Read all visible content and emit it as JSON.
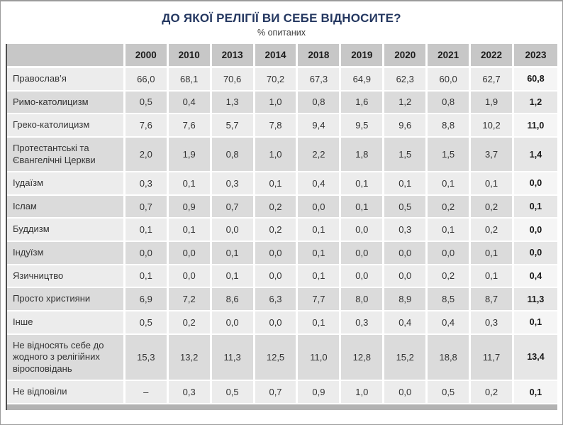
{
  "title": "ДО ЯКОЇ РЕЛІГІЇ ВИ СЕБЕ ВІДНОСИТЕ?",
  "subtitle": "% опитаних",
  "colors": {
    "title_navy": "#243760",
    "header_bg": "#c7c7c7",
    "row_light": "#ececec",
    "row_dark": "#dbdbdb",
    "footer_bar": "#b2b2b2"
  },
  "table": {
    "year_headers": [
      "2000",
      "2010",
      "2013",
      "2014",
      "2018",
      "2019",
      "2020",
      "2021",
      "2022",
      "2023"
    ],
    "rows": [
      {
        "label": "Православ’я",
        "values": [
          "66,0",
          "68,1",
          "70,6",
          "70,2",
          "67,3",
          "64,9",
          "62,3",
          "60,0",
          "62,7",
          "60,8"
        ]
      },
      {
        "label": "Римо-католицизм",
        "values": [
          "0,5",
          "0,4",
          "1,3",
          "1,0",
          "0,8",
          "1,6",
          "1,2",
          "0,8",
          "1,9",
          "1,2"
        ]
      },
      {
        "label": "Греко-католицизм",
        "values": [
          "7,6",
          "7,6",
          "5,7",
          "7,8",
          "9,4",
          "9,5",
          "9,6",
          "8,8",
          "10,2",
          "11,0"
        ]
      },
      {
        "label": "Протестантські та Євангелічні Церкви",
        "values": [
          "2,0",
          "1,9",
          "0,8",
          "1,0",
          "2,2",
          "1,8",
          "1,5",
          "1,5",
          "3,7",
          "1,4"
        ]
      },
      {
        "label": "Іудаїзм",
        "values": [
          "0,3",
          "0,1",
          "0,3",
          "0,1",
          "0,4",
          "0,1",
          "0,1",
          "0,1",
          "0,1",
          "0,0"
        ]
      },
      {
        "label": "Іслам",
        "values": [
          "0,7",
          "0,9",
          "0,7",
          "0,2",
          "0,0",
          "0,1",
          "0,5",
          "0,2",
          "0,2",
          "0,1"
        ]
      },
      {
        "label": "Буддизм",
        "values": [
          "0,1",
          "0,1",
          "0,0",
          "0,2",
          "0,1",
          "0,0",
          "0,3",
          "0,1",
          "0,2",
          "0,0"
        ]
      },
      {
        "label": "Індуїзм",
        "values": [
          "0,0",
          "0,0",
          "0,1",
          "0,0",
          "0,1",
          "0,0",
          "0,0",
          "0,0",
          "0,1",
          "0,0"
        ]
      },
      {
        "label": "Язичництво",
        "values": [
          "0,1",
          "0,0",
          "0,1",
          "0,0",
          "0,1",
          "0,0",
          "0,0",
          "0,2",
          "0,1",
          "0,4"
        ]
      },
      {
        "label": "Просто християни",
        "values": [
          "6,9",
          "7,2",
          "8,6",
          "6,3",
          "7,7",
          "8,0",
          "8,9",
          "8,5",
          "8,7",
          "11,3"
        ]
      },
      {
        "label": "Інше",
        "values": [
          "0,5",
          "0,2",
          "0,0",
          "0,0",
          "0,1",
          "0,3",
          "0,4",
          "0,4",
          "0,3",
          "0,1"
        ]
      },
      {
        "label": "Не відносять себе до жодного з релігійних віросповідань",
        "values": [
          "15,3",
          "13,2",
          "11,3",
          "12,5",
          "11,0",
          "12,8",
          "15,2",
          "18,8",
          "11,7",
          "13,4"
        ]
      },
      {
        "label": "Не відповіли",
        "values": [
          "–",
          "0,3",
          "0,5",
          "0,7",
          "0,9",
          "1,0",
          "0,0",
          "0,5",
          "0,2",
          "0,1"
        ]
      }
    ]
  },
  "chart_data": {
    "type": "table",
    "title": "ДО ЯКОЇ РЕЛІГІЇ ВИ СЕБЕ ВІДНОСИТЕ?",
    "subtitle": "% опитаних",
    "categories": [
      "2000",
      "2010",
      "2013",
      "2014",
      "2018",
      "2019",
      "2020",
      "2021",
      "2022",
      "2023"
    ],
    "series": [
      {
        "name": "Православ’я",
        "values": [
          66.0,
          68.1,
          70.6,
          70.2,
          67.3,
          64.9,
          62.3,
          60.0,
          62.7,
          60.8
        ]
      },
      {
        "name": "Римо-католицизм",
        "values": [
          0.5,
          0.4,
          1.3,
          1.0,
          0.8,
          1.6,
          1.2,
          0.8,
          1.9,
          1.2
        ]
      },
      {
        "name": "Греко-католицизм",
        "values": [
          7.6,
          7.6,
          5.7,
          7.8,
          9.4,
          9.5,
          9.6,
          8.8,
          10.2,
          11.0
        ]
      },
      {
        "name": "Протестантські та Євангелічні Церкви",
        "values": [
          2.0,
          1.9,
          0.8,
          1.0,
          2.2,
          1.8,
          1.5,
          1.5,
          3.7,
          1.4
        ]
      },
      {
        "name": "Іудаїзм",
        "values": [
          0.3,
          0.1,
          0.3,
          0.1,
          0.4,
          0.1,
          0.1,
          0.1,
          0.1,
          0.0
        ]
      },
      {
        "name": "Іслам",
        "values": [
          0.7,
          0.9,
          0.7,
          0.2,
          0.0,
          0.1,
          0.5,
          0.2,
          0.2,
          0.1
        ]
      },
      {
        "name": "Буддизм",
        "values": [
          0.1,
          0.1,
          0.0,
          0.2,
          0.1,
          0.0,
          0.3,
          0.1,
          0.2,
          0.0
        ]
      },
      {
        "name": "Індуїзм",
        "values": [
          0.0,
          0.0,
          0.1,
          0.0,
          0.1,
          0.0,
          0.0,
          0.0,
          0.1,
          0.0
        ]
      },
      {
        "name": "Язичництво",
        "values": [
          0.1,
          0.0,
          0.1,
          0.0,
          0.1,
          0.0,
          0.0,
          0.2,
          0.1,
          0.4
        ]
      },
      {
        "name": "Просто християни",
        "values": [
          6.9,
          7.2,
          8.6,
          6.3,
          7.7,
          8.0,
          8.9,
          8.5,
          8.7,
          11.3
        ]
      },
      {
        "name": "Інше",
        "values": [
          0.5,
          0.2,
          0.0,
          0.0,
          0.1,
          0.3,
          0.4,
          0.4,
          0.3,
          0.1
        ]
      },
      {
        "name": "Не відносять себе до жодного з релігійних віросповідань",
        "values": [
          15.3,
          13.2,
          11.3,
          12.5,
          11.0,
          12.8,
          15.2,
          18.8,
          11.7,
          13.4
        ]
      },
      {
        "name": "Не відповіли",
        "values": [
          null,
          0.3,
          0.5,
          0.7,
          0.9,
          1.0,
          0.0,
          0.5,
          0.2,
          0.1
        ]
      }
    ],
    "layout": {
      "highlighted_column": "2023",
      "grid": false,
      "legend": "none"
    }
  }
}
